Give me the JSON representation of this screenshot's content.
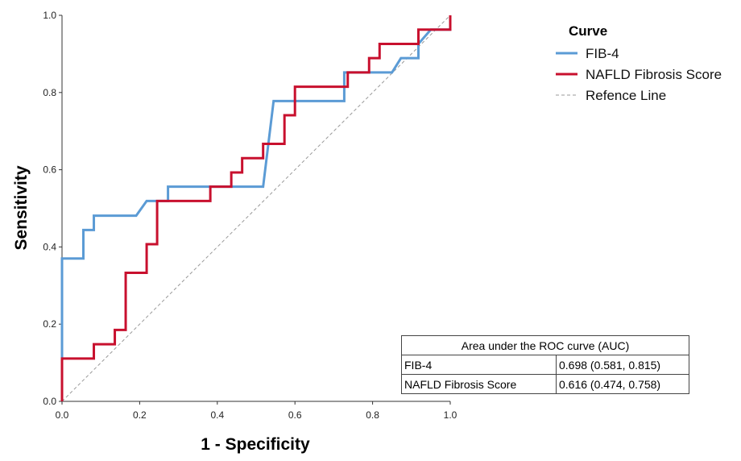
{
  "chart_data": {
    "type": "line",
    "title": "",
    "xlabel": "1 - Specificity",
    "ylabel": "Sensitivity",
    "xlim": [
      0,
      1
    ],
    "ylim": [
      0,
      1
    ],
    "x_ticks": [
      "0.0",
      "0.2",
      "0.4",
      "0.6",
      "0.8",
      "1.0"
    ],
    "y_ticks": [
      "0.0",
      "0.2",
      "0.4",
      "0.6",
      "0.8",
      "1.0"
    ],
    "grid": false,
    "legend_title": "Curve",
    "legend_position": "top-right",
    "series": [
      {
        "name": "FIB-4",
        "color": "#5b9bd5",
        "x": [
          0,
          0,
          0,
          0.055,
          0.055,
          0.082,
          0.082,
          0.191,
          0.218,
          0.273,
          0.273,
          0.518,
          0.545,
          0.545,
          0.727,
          0.727,
          0.85,
          0.873,
          0.918,
          0.918,
          0.95,
          1.0,
          1.0
        ],
        "y": [
          0,
          0.11,
          0.37,
          0.37,
          0.444,
          0.444,
          0.481,
          0.481,
          0.519,
          0.519,
          0.556,
          0.556,
          0.778,
          0.778,
          0.778,
          0.852,
          0.852,
          0.889,
          0.889,
          0.926,
          0.963,
          0.963,
          1.0
        ]
      },
      {
        "name": "NAFLD Fibrosis Score",
        "color": "#c8102e",
        "x": [
          0,
          0,
          0.082,
          0.082,
          0.136,
          0.136,
          0.164,
          0.164,
          0.218,
          0.218,
          0.245,
          0.245,
          0.382,
          0.382,
          0.436,
          0.436,
          0.464,
          0.464,
          0.518,
          0.518,
          0.573,
          0.573,
          0.6,
          0.6,
          0.736,
          0.736,
          0.791,
          0.791,
          0.818,
          0.818,
          0.918,
          0.918,
          1.0,
          1.0
        ],
        "y": [
          0,
          0.111,
          0.111,
          0.148,
          0.148,
          0.185,
          0.185,
          0.333,
          0.333,
          0.407,
          0.407,
          0.519,
          0.519,
          0.556,
          0.556,
          0.593,
          0.593,
          0.63,
          0.63,
          0.667,
          0.667,
          0.741,
          0.741,
          0.815,
          0.815,
          0.852,
          0.852,
          0.889,
          0.889,
          0.926,
          0.926,
          0.963,
          0.963,
          1.0
        ]
      },
      {
        "name": "Refence Line",
        "color": "#999999",
        "dashed": true,
        "x": [
          0,
          1
        ],
        "y": [
          0,
          1
        ]
      }
    ]
  },
  "auc_table": {
    "caption": "Area under the ROC curve (AUC)",
    "rows": [
      {
        "name": "FIB-4",
        "value": "0.698 (0.581, 0.815)"
      },
      {
        "name": "NAFLD Fibrosis Score",
        "value": "0.616 (0.474, 0.758)"
      }
    ]
  }
}
